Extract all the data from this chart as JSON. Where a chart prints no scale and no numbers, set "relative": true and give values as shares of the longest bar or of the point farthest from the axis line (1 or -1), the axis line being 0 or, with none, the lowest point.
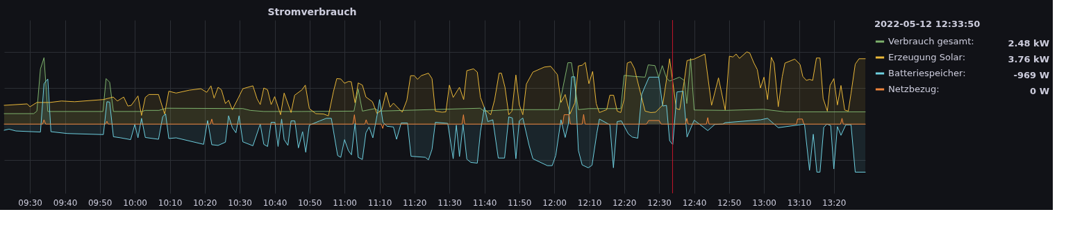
{
  "chart_data": {
    "type": "area",
    "title": "Stromverbrauch",
    "relative": true,
    "grid": true,
    "legend": "right",
    "legend_title": "2022-05-12 12:33:50",
    "annotations": [
      "2.48 kW",
      "3.76 kW",
      "-969 W",
      "0 W"
    ],
    "xlim": [
      9.377,
      13.483
    ],
    "xticks": [
      {
        "value": 9.5,
        "label": "09:30"
      },
      {
        "value": 9.667,
        "label": "09:40"
      },
      {
        "value": 9.833,
        "label": "09:50"
      },
      {
        "value": 10,
        "label": "10:00"
      },
      {
        "value": 10.167,
        "label": "10:10"
      },
      {
        "value": 10.333,
        "label": "10:20"
      },
      {
        "value": 10.5,
        "label": "10:30"
      },
      {
        "value": 10.667,
        "label": "10:40"
      },
      {
        "value": 10.833,
        "label": "10:50"
      },
      {
        "value": 11,
        "label": "11:00"
      },
      {
        "value": 11.167,
        "label": "11:10"
      },
      {
        "value": 11.333,
        "label": "11:20"
      },
      {
        "value": 11.5,
        "label": "11:30"
      },
      {
        "value": 11.667,
        "label": "11:40"
      },
      {
        "value": 11.833,
        "label": "11:50"
      },
      {
        "value": 12,
        "label": "12:00"
      },
      {
        "value": 12.167,
        "label": "12:10"
      },
      {
        "value": 12.333,
        "label": "12:20"
      },
      {
        "value": 12.5,
        "label": "12:30"
      },
      {
        "value": 12.667,
        "label": "12:40"
      },
      {
        "value": 12.833,
        "label": "12:50"
      },
      {
        "value": 13,
        "label": "13:00"
      },
      {
        "value": 13.167,
        "label": "13:10"
      },
      {
        "value": 13.333,
        "label": "13:20"
      }
    ],
    "ref_lines": [
      {
        "axis": "x",
        "value": 12.564,
        "color": "#c4162a"
      }
    ],
    "series": [
      {
        "name": "Verbrauch gesamt:",
        "color": "#7eb26d",
        "x": [
          9.377,
          9.518,
          9.533,
          9.55,
          9.567,
          9.585,
          9.848,
          9.863,
          9.88,
          9.898,
          10.033,
          10.05,
          10.115,
          10.15,
          10.515,
          10.55,
          10.615,
          10.797,
          11.045,
          11.065,
          11.085,
          11.145,
          11.163,
          11.647,
          11.665,
          11.783,
          12.02,
          12.065,
          12.082,
          12.115,
          12.167,
          12.203,
          12.317,
          12.333,
          12.382,
          12.433,
          12.448,
          12.48,
          12.498,
          12.515,
          12.535,
          12.55,
          12.597,
          12.62,
          12.632,
          12.65,
          12.667,
          12.82,
          12.998,
          13.1,
          13.483
        ],
        "values": [
          0.145,
          0.145,
          0.18,
          0.765,
          0.92,
          0.175,
          0.175,
          0.63,
          0.58,
          0.175,
          0.175,
          0.19,
          0.19,
          0.22,
          0.215,
          0.19,
          0.175,
          0.175,
          0.18,
          0.485,
          0.18,
          0.215,
          0.18,
          0.22,
          0.18,
          0.2,
          0.2,
          0.85,
          0.85,
          0.2,
          0.215,
          0.215,
          0.215,
          0.675,
          0.66,
          0.65,
          0.82,
          0.81,
          0.65,
          0.81,
          0.64,
          0.595,
          0.65,
          0.605,
          0.285,
          0.91,
          0.195,
          0.19,
          0.205,
          0.17,
          0.17
        ]
      },
      {
        "name": "Erzeugung Solar:",
        "color": "#eab839",
        "x": [
          9.377,
          9.487,
          9.5,
          9.533,
          9.595,
          9.65,
          9.713,
          9.85,
          9.897,
          9.917,
          9.947,
          9.967,
          9.983,
          10.015,
          10.032,
          10.05,
          10.067,
          10.113,
          10.142,
          10.162,
          10.197,
          10.26,
          10.315,
          10.343,
          10.363,
          10.378,
          10.397,
          10.413,
          10.432,
          10.447,
          10.465,
          10.493,
          10.515,
          10.563,
          10.583,
          10.598,
          10.615,
          10.633,
          10.65,
          10.667,
          10.695,
          10.712,
          10.745,
          10.762,
          10.797,
          10.813,
          10.832,
          10.863,
          10.9,
          10.923,
          10.947,
          10.963,
          10.982,
          11.0,
          11.018,
          11.032,
          11.05,
          11.065,
          11.085,
          11.102,
          11.133,
          11.155,
          11.178,
          11.198,
          11.217,
          11.233,
          11.275,
          11.297,
          11.315,
          11.333,
          11.348,
          11.365,
          11.4,
          11.417,
          11.433,
          11.465,
          11.483,
          11.5,
          11.518,
          11.548,
          11.568,
          11.583,
          11.615,
          11.633,
          11.648,
          11.67,
          11.697,
          11.715,
          11.737,
          11.748,
          11.765,
          11.783,
          11.798,
          11.817,
          11.833,
          11.85,
          11.867,
          11.898,
          11.953,
          11.983,
          12.015,
          12.032,
          12.052,
          12.075,
          12.098,
          12.115,
          12.133,
          12.148,
          12.165,
          12.183,
          12.2,
          12.215,
          12.232,
          12.25,
          12.265,
          12.283,
          12.3,
          12.317,
          12.333,
          12.348,
          12.365,
          12.382,
          12.41,
          12.433,
          12.46,
          12.483,
          12.517,
          12.55,
          12.582,
          12.598,
          12.62,
          12.633,
          12.667,
          12.718,
          12.75,
          12.783,
          12.815,
          12.835,
          12.852,
          12.867,
          12.883,
          12.918,
          12.932,
          12.952,
          12.968,
          12.983,
          13.0,
          13.017,
          13.035,
          13.048,
          13.068,
          13.087,
          13.1,
          13.147,
          13.172,
          13.185,
          13.202,
          13.217,
          13.232,
          13.25,
          13.267,
          13.282,
          13.302,
          13.315,
          13.333,
          13.35,
          13.367,
          13.385,
          13.402,
          13.415,
          13.435,
          13.453,
          13.483
        ],
        "values": [
          0.26,
          0.28,
          0.24,
          0.3,
          0.3,
          0.32,
          0.31,
          0.34,
          0.375,
          0.32,
          0.375,
          0.25,
          0.26,
          0.39,
          0.12,
          0.37,
          0.41,
          0.41,
          0.14,
          0.455,
          0.43,
          0.47,
          0.49,
          0.44,
          0.53,
          0.36,
          0.51,
          0.475,
          0.285,
          0.33,
          0.2,
          0.36,
          0.49,
          0.53,
          0.35,
          0.27,
          0.5,
          0.475,
          0.27,
          0.38,
          0.13,
          0.43,
          0.16,
          0.4,
          0.475,
          0.54,
          0.215,
          0.145,
          0.14,
          0.115,
          0.45,
          0.63,
          0.625,
          0.565,
          0.59,
          0.587,
          0.295,
          0.57,
          0.54,
          0.375,
          0.31,
          0.145,
          0.2,
          0.44,
          0.235,
          0.29,
          0.165,
          0.33,
          0.67,
          0.67,
          0.62,
          0.67,
          0.705,
          0.63,
          0.18,
          0.165,
          0.17,
          0.54,
          0.37,
          0.51,
          0.34,
          0.74,
          0.765,
          0.72,
          0.37,
          0.2,
          0.13,
          0.33,
          0.705,
          0.705,
          0.51,
          0.13,
          0.18,
          0.68,
          0.27,
          0.13,
          0.555,
          0.72,
          0.79,
          0.8,
          0.685,
          0.3,
          0.41,
          0.14,
          0.295,
          0.805,
          0.815,
          0.855,
          0.56,
          0.73,
          0.285,
          0.16,
          0.18,
          0.2,
          0.4,
          0.4,
          0.18,
          0.16,
          0.345,
          0.845,
          0.865,
          0.77,
          0.445,
          0.18,
          0.16,
          0.165,
          0.265,
          0.905,
          0.215,
          0.2,
          0.605,
          0.88,
          0.9,
          0.97,
          0.26,
          0.64,
          0.195,
          0.94,
          0.93,
          0.97,
          0.91,
          1.0,
          0.985,
          0.845,
          0.755,
          0.5,
          0.65,
          0.34,
          0.925,
          0.845,
          0.24,
          0.66,
          0.845,
          0.9,
          0.825,
          0.66,
          0.605,
          0.62,
          0.605,
          0.915,
          0.915,
          0.355,
          0.18,
          0.535,
          0.63,
          0.265,
          0.535,
          0.195,
          0.18,
          0.425,
          0.83,
          0.905,
          0.905
        ]
      },
      {
        "name": "Batteriespeicher:",
        "color": "#6ed0e0",
        "x": [
          9.377,
          9.4,
          9.433,
          9.55,
          9.567,
          9.585,
          9.6,
          9.678,
          9.85,
          9.867,
          9.88,
          9.898,
          9.933,
          9.98,
          10.0,
          10.015,
          10.032,
          10.05,
          10.113,
          10.133,
          10.147,
          10.162,
          10.197,
          10.328,
          10.347,
          10.367,
          10.397,
          10.432,
          10.447,
          10.465,
          10.482,
          10.497,
          10.515,
          10.563,
          10.598,
          10.615,
          10.633,
          10.65,
          10.668,
          10.683,
          10.7,
          10.712,
          10.73,
          10.745,
          10.763,
          10.78,
          10.8,
          10.815,
          10.832,
          10.882,
          10.913,
          10.937,
          10.967,
          10.982,
          11.0,
          11.018,
          11.033,
          11.05,
          11.065,
          11.085,
          11.102,
          11.117,
          11.135,
          11.155,
          11.167,
          11.183,
          11.202,
          11.233,
          11.248,
          11.27,
          11.3,
          11.317,
          11.385,
          11.4,
          11.417,
          11.433,
          11.492,
          11.518,
          11.533,
          11.548,
          11.565,
          11.583,
          11.602,
          11.633,
          11.648,
          11.667,
          11.683,
          11.707,
          11.733,
          11.763,
          11.783,
          11.8,
          11.817,
          11.833,
          11.85,
          11.88,
          11.898,
          11.967,
          11.99,
          12.007,
          12.032,
          12.052,
          12.067,
          12.083,
          12.098,
          12.115,
          12.133,
          12.162,
          12.18,
          12.203,
          12.215,
          12.265,
          12.282,
          12.3,
          12.32,
          12.353,
          12.372,
          12.398,
          12.417,
          12.428,
          12.452,
          12.498,
          12.517,
          12.535,
          12.55,
          12.565,
          12.585,
          12.615,
          12.633,
          12.667,
          12.732,
          12.765,
          12.803,
          12.815,
          12.985,
          13.017,
          13.068,
          13.193,
          13.217,
          13.235,
          13.252,
          13.267,
          13.285,
          13.3,
          13.318,
          13.333,
          13.35,
          13.367,
          13.39,
          13.415,
          13.435,
          13.483
        ],
        "values": [
          -0.085,
          -0.07,
          -0.095,
          -0.11,
          0.56,
          0.625,
          -0.105,
          -0.13,
          -0.145,
          0.31,
          0.305,
          -0.175,
          -0.19,
          -0.215,
          -0.005,
          -0.19,
          0.08,
          -0.185,
          -0.21,
          0.105,
          0.14,
          -0.2,
          -0.19,
          -0.28,
          0.05,
          -0.285,
          -0.295,
          -0.25,
          0.115,
          -0.05,
          -0.12,
          0.115,
          -0.245,
          -0.3,
          0,
          -0.28,
          -0.31,
          0.025,
          0.025,
          -0.31,
          0.07,
          -0.215,
          -0.295,
          0.045,
          0.045,
          -0.33,
          -0.105,
          -0.39,
          -0.015,
          0.045,
          0.08,
          0.08,
          -0.435,
          -0.46,
          -0.215,
          -0.365,
          -0.425,
          0.01,
          -0.46,
          -0.49,
          -0.12,
          -0.04,
          -0.19,
          0.12,
          0.34,
          0.025,
          -0.03,
          -0.04,
          -0.21,
          0.015,
          0.015,
          -0.445,
          -0.46,
          -0.495,
          -0.35,
          0.025,
          0.01,
          -0.48,
          -0.015,
          -0.45,
          -0.005,
          -0.485,
          -0.53,
          -0.54,
          -0.105,
          0.235,
          0.035,
          0.06,
          -0.47,
          -0.47,
          0.1,
          0.085,
          -0.48,
          0.045,
          0.085,
          -0.295,
          -0.48,
          -0.575,
          -0.575,
          -0.435,
          0.06,
          -0.185,
          0,
          0.655,
          0.655,
          -0.365,
          -0.565,
          -0.605,
          -0.57,
          -0.125,
          0.07,
          -0.01,
          -0.605,
          0.035,
          0.045,
          -0.135,
          -0.18,
          -0.195,
          0.41,
          0.49,
          0.65,
          0.65,
          0.25,
          0.26,
          -0.23,
          -0.285,
          0.445,
          0.455,
          -0.18,
          0.055,
          -0.09,
          -0.005,
          0,
          0.02,
          0.06,
          0.08,
          -0.05,
          0,
          -0.64,
          -0.14,
          -0.665,
          -0.665,
          -0.045,
          0,
          -0.02,
          -0.62,
          -0.035,
          -0.155,
          -0.01,
          -0.01,
          -0.665,
          -0.665
        ]
      },
      {
        "name": "Netzbezug:",
        "color": "#ef843c",
        "x": [
          9.377,
          9.56,
          9.567,
          9.575,
          9.86,
          9.867,
          9.873,
          10.36,
          10.367,
          10.373,
          11.04,
          11.047,
          11.053,
          11.097,
          11.103,
          11.11,
          11.175,
          11.182,
          11.188,
          11.56,
          11.567,
          11.573,
          12.04,
          12.047,
          12.07,
          12.077,
          12.133,
          12.14,
          12.147,
          12.44,
          12.45,
          12.5,
          12.51,
          12.625,
          12.632,
          12.638,
          12.725,
          12.732,
          12.738,
          13.155,
          13.16,
          13.183,
          13.19,
          13.365,
          13.372,
          13.378,
          13.483
        ],
        "values": [
          0,
          0,
          0.06,
          0,
          0,
          0.04,
          0,
          0,
          0.07,
          0,
          0,
          0.13,
          0,
          0,
          0.06,
          0,
          0,
          -0.06,
          0,
          0,
          0.13,
          0,
          0,
          0.13,
          0.13,
          0,
          0,
          0.135,
          0,
          0,
          0.05,
          0.05,
          0,
          0,
          0.08,
          0,
          0,
          0.09,
          0,
          0,
          0.07,
          0.07,
          0,
          0,
          0.08,
          0,
          0
        ]
      }
    ]
  }
}
